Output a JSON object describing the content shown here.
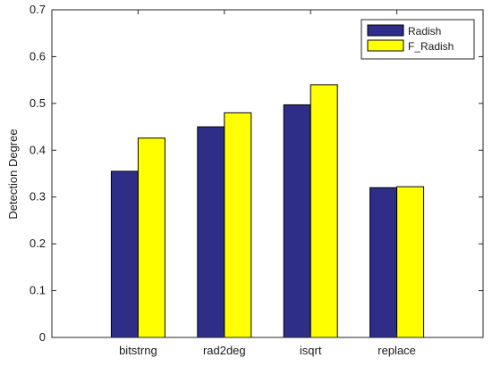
{
  "chart_data": {
    "type": "bar",
    "categories": [
      "bitstrng",
      "rad2deg",
      "isqrt",
      "replace"
    ],
    "series": [
      {
        "name": "Radish",
        "values": [
          0.355,
          0.45,
          0.497,
          0.32
        ],
        "color": "#2e2d88"
      },
      {
        "name": "F_Radish",
        "values": [
          0.426,
          0.48,
          0.54,
          0.322
        ],
        "color": "#ffff00"
      }
    ],
    "title": "",
    "xlabel": "",
    "ylabel": "Detection Degree",
    "ylim": [
      0,
      0.7
    ],
    "yticks": [
      "0",
      "0.1",
      "0.2",
      "0.3",
      "0.4",
      "0.5",
      "0.6",
      "0.7"
    ],
    "grid": false,
    "legend_position": "top-right"
  }
}
